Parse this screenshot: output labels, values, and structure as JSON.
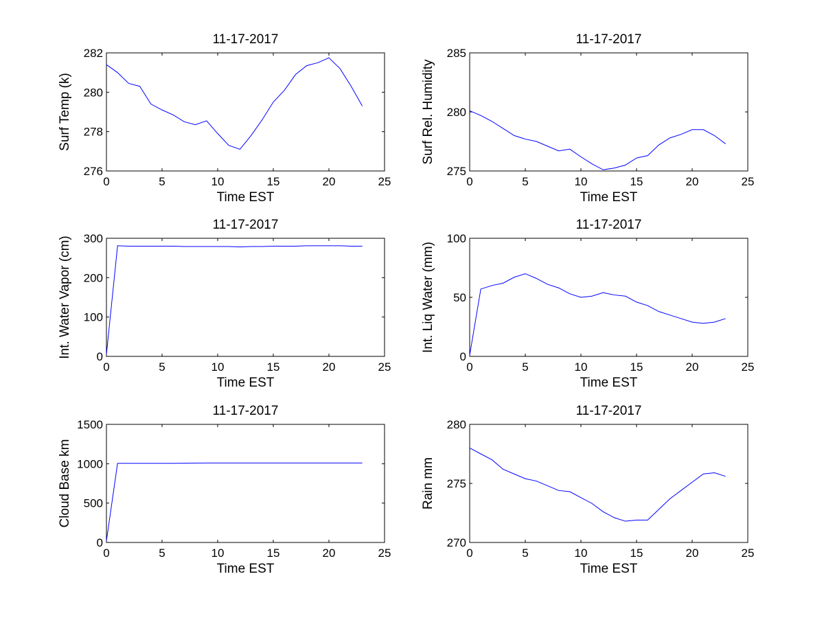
{
  "figure": {
    "background": "#ffffff",
    "line_color": "#0000ff",
    "axes_color": "#000000"
  },
  "chart_data": [
    {
      "type": "line",
      "title": "11-17-2017",
      "xlabel": "Time EST",
      "ylabel": "Surf Temp (k)",
      "xlim": [
        0,
        25
      ],
      "ylim": [
        276,
        282
      ],
      "xticks": [
        0,
        5,
        10,
        15,
        20,
        25
      ],
      "yticks": [
        276,
        278,
        280,
        282
      ],
      "grid": false,
      "x": [
        0,
        1,
        2,
        3,
        4,
        5,
        6,
        7,
        8,
        9,
        10,
        11,
        12,
        13,
        14,
        15,
        16,
        17,
        18,
        19,
        20,
        21,
        22,
        23
      ],
      "y": [
        281.4,
        281.0,
        280.45,
        280.3,
        279.4,
        279.1,
        278.85,
        278.5,
        278.35,
        278.55,
        277.9,
        277.3,
        277.1,
        277.8,
        278.6,
        279.5,
        280.1,
        280.9,
        281.35,
        281.5,
        281.75,
        281.2,
        280.3,
        279.3
      ]
    },
    {
      "type": "line",
      "title": "11-17-2017",
      "xlabel": "Time EST",
      "ylabel": "Surf Rel. Humidity",
      "xlim": [
        0,
        25
      ],
      "ylim": [
        275,
        285
      ],
      "xticks": [
        0,
        5,
        10,
        15,
        20,
        25
      ],
      "yticks": [
        275,
        280,
        285
      ],
      "grid": false,
      "x": [
        0,
        1,
        2,
        3,
        4,
        5,
        6,
        7,
        8,
        9,
        10,
        11,
        12,
        13,
        14,
        15,
        16,
        17,
        18,
        19,
        20,
        21,
        22,
        23
      ],
      "y": [
        280.1,
        279.7,
        279.2,
        278.6,
        278.0,
        277.7,
        277.5,
        277.1,
        276.7,
        276.85,
        276.2,
        275.6,
        275.1,
        275.25,
        275.5,
        276.1,
        276.3,
        277.2,
        277.8,
        278.1,
        278.5,
        278.5,
        278.0,
        277.3
      ]
    },
    {
      "type": "line",
      "title": "11-17-2017",
      "xlabel": "Time EST",
      "ylabel": "Int. Water Vapor (cm)",
      "xlim": [
        0,
        25
      ],
      "ylim": [
        0,
        300
      ],
      "xticks": [
        0,
        5,
        10,
        15,
        20,
        25
      ],
      "yticks": [
        0,
        100,
        200,
        300
      ],
      "grid": false,
      "x": [
        0,
        1,
        2,
        3,
        4,
        5,
        6,
        7,
        8,
        9,
        10,
        11,
        12,
        13,
        14,
        15,
        16,
        17,
        18,
        19,
        20,
        21,
        22,
        23
      ],
      "y": [
        5,
        281,
        280,
        280,
        280,
        280,
        280,
        279,
        279,
        279,
        279,
        279,
        278,
        279,
        279,
        280,
        280,
        280,
        281,
        281,
        281,
        281,
        280,
        280
      ]
    },
    {
      "type": "line",
      "title": "11-17-2017",
      "xlabel": "Time EST",
      "ylabel": "Int. Liq Water (mm)",
      "xlim": [
        0,
        25
      ],
      "ylim": [
        0,
        100
      ],
      "xticks": [
        0,
        5,
        10,
        15,
        20,
        25
      ],
      "yticks": [
        0,
        50,
        100
      ],
      "grid": false,
      "x": [
        0,
        1,
        2,
        3,
        4,
        5,
        6,
        7,
        8,
        9,
        10,
        11,
        12,
        13,
        14,
        15,
        16,
        17,
        18,
        19,
        20,
        21,
        22,
        23
      ],
      "y": [
        1,
        57,
        60,
        62,
        67,
        70,
        66,
        61,
        58,
        53,
        50,
        51,
        54,
        52,
        51,
        46,
        43,
        38,
        35,
        32,
        29,
        28,
        29,
        32
      ]
    },
    {
      "type": "line",
      "title": "11-17-2017",
      "xlabel": "Time EST",
      "ylabel": "Cloud Base km",
      "xlim": [
        0,
        25
      ],
      "ylim": [
        0,
        1500
      ],
      "xticks": [
        0,
        5,
        10,
        15,
        20,
        25
      ],
      "yticks": [
        0,
        500,
        1000,
        1500
      ],
      "grid": false,
      "x": [
        0,
        1,
        2,
        3,
        4,
        5,
        6,
        7,
        8,
        9,
        10,
        11,
        12,
        13,
        14,
        15,
        16,
        17,
        18,
        19,
        20,
        21,
        22,
        23
      ],
      "y": [
        20,
        1005,
        1005,
        1005,
        1005,
        1005,
        1005,
        1007,
        1008,
        1010,
        1010,
        1010,
        1010,
        1010,
        1010,
        1010,
        1010,
        1010,
        1010,
        1010,
        1010,
        1010,
        1010,
        1010
      ]
    },
    {
      "type": "line",
      "title": "11-17-2017",
      "xlabel": "Time EST",
      "ylabel": "Rain mm",
      "xlim": [
        0,
        25
      ],
      "ylim": [
        270,
        280
      ],
      "xticks": [
        0,
        5,
        10,
        15,
        20,
        25
      ],
      "yticks": [
        270,
        275,
        280
      ],
      "grid": false,
      "x": [
        0,
        1,
        2,
        3,
        4,
        5,
        6,
        7,
        8,
        9,
        10,
        11,
        12,
        13,
        14,
        15,
        16,
        17,
        18,
        19,
        20,
        21,
        22,
        23
      ],
      "y": [
        278.0,
        277.5,
        277.0,
        276.2,
        275.8,
        275.4,
        275.2,
        274.8,
        274.4,
        274.3,
        273.8,
        273.3,
        272.6,
        272.1,
        271.8,
        271.9,
        271.9,
        272.8,
        273.7,
        274.4,
        275.1,
        275.8,
        275.9,
        275.6
      ]
    }
  ]
}
